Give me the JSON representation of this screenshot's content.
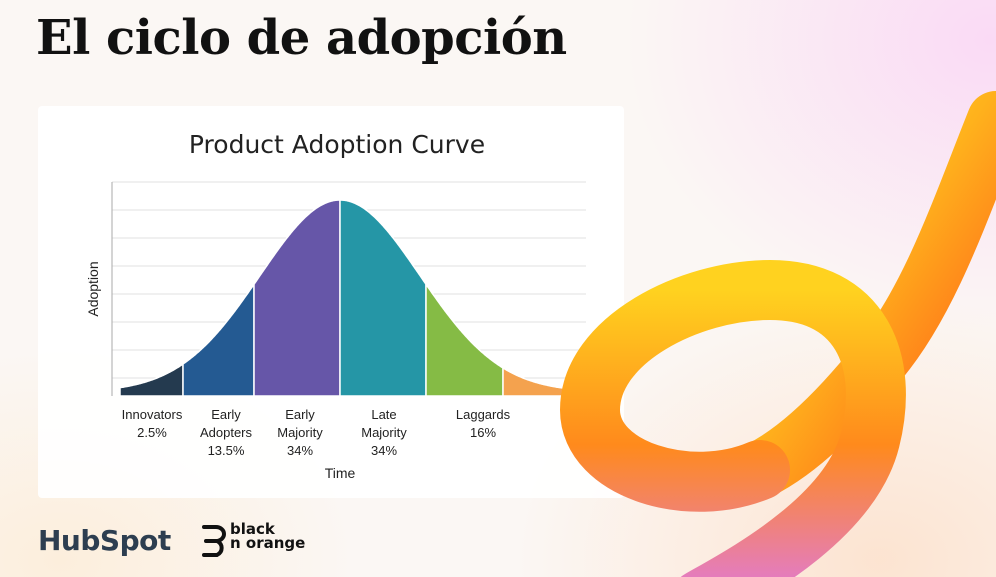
{
  "page": {
    "title": "El ciclo de adopción"
  },
  "chart_data": {
    "type": "area",
    "title": "Product Adoption Curve",
    "xlabel": "Time",
    "ylabel": "Adoption",
    "grid": true,
    "segments": [
      {
        "name": "Innovators",
        "label_lines": [
          "Innovators",
          "2.5%"
        ],
        "value": 2.5,
        "color": "#243a4f"
      },
      {
        "name": "Early Adopters",
        "label_lines": [
          "Early",
          "Adopters",
          "13.5%"
        ],
        "value": 13.5,
        "color": "#245a92"
      },
      {
        "name": "Early Majority",
        "label_lines": [
          "Early",
          "Majority",
          "34%"
        ],
        "value": 34,
        "color": "#6656a8"
      },
      {
        "name": "Late Majority",
        "label_lines": [
          "Late",
          "Majority",
          "34%"
        ],
        "value": 34,
        "color": "#2596a6"
      },
      {
        "name": "Laggards",
        "label_lines": [
          "Laggards",
          "16%"
        ],
        "value": 16,
        "color": "#85bb45"
      },
      {
        "name": "",
        "label_lines": [],
        "value": 0,
        "color": "#f4a24e"
      }
    ]
  },
  "logos": {
    "hubspot": "HubSpot",
    "bno_line1": "black",
    "bno_line2": "n orange"
  },
  "colors": {
    "ribbon_yellow": "#ffd21f",
    "ribbon_orange": "#ff7a1a",
    "ribbon_magenta": "#d672e0"
  }
}
